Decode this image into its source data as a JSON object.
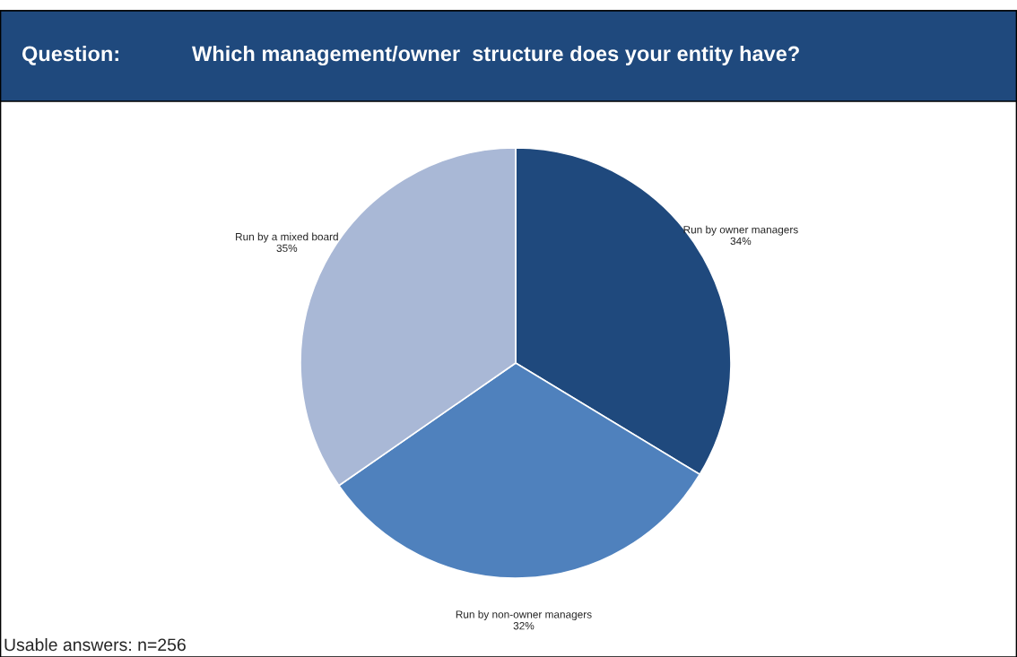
{
  "chart_data": {
    "type": "pie",
    "title": "Question:",
    "subtitle": "Which management/owner  structure does your entity have?",
    "categories": [
      "Run by owner managers",
      "Run by non-owner managers",
      "Run by a mixed board"
    ],
    "values": [
      34,
      32,
      35
    ],
    "value_labels": [
      "34%",
      "32%",
      "35%"
    ],
    "colors": [
      "#1f497d",
      "#4f81bd",
      "#a9b8d6"
    ],
    "annotations": [
      "Usable answers: n=256"
    ]
  }
}
